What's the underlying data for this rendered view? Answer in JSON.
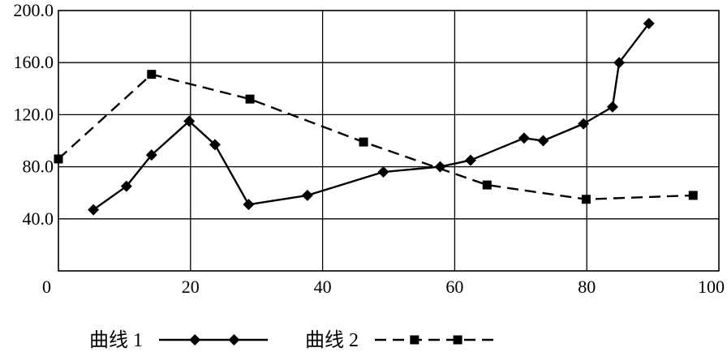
{
  "chart_data": {
    "type": "line",
    "title": "",
    "xlabel": "",
    "ylabel": "",
    "xlim": [
      0,
      100
    ],
    "ylim": [
      0,
      200
    ],
    "x_ticks": [
      0,
      20,
      40,
      60,
      80,
      100
    ],
    "x_tick_labels": [
      "0",
      "20",
      "40",
      "60",
      "80",
      "100"
    ],
    "y_ticks": [
      40,
      80,
      120,
      160,
      200
    ],
    "y_tick_labels": [
      "40.0",
      "80.0",
      "120.0",
      "160.0",
      "200.0"
    ],
    "grid": true,
    "legend_position": "bottom",
    "series": [
      {
        "name": "曲线 1",
        "line_style": "solid",
        "marker": "diamond",
        "color": "#000000",
        "points": [
          [
            5.3,
            47
          ],
          [
            10.3,
            65
          ],
          [
            14.1,
            89
          ],
          [
            19.8,
            115
          ],
          [
            23.7,
            97
          ],
          [
            28.8,
            51
          ],
          [
            37.7,
            58
          ],
          [
            49.2,
            76
          ],
          [
            57.8,
            80
          ],
          [
            62.4,
            85
          ],
          [
            70.5,
            102
          ],
          [
            73.4,
            100
          ],
          [
            79.5,
            113
          ],
          [
            83.9,
            126
          ],
          [
            84.9,
            160
          ],
          [
            89.4,
            190
          ]
        ]
      },
      {
        "name": "曲线 2",
        "line_style": "dashed",
        "marker": "square",
        "color": "#000000",
        "points": [
          [
            0,
            86
          ],
          [
            14.1,
            151
          ],
          [
            29.0,
            132
          ],
          [
            46.2,
            99
          ],
          [
            64.9,
            66
          ],
          [
            79.9,
            55
          ],
          [
            96.1,
            58
          ]
        ]
      }
    ]
  }
}
